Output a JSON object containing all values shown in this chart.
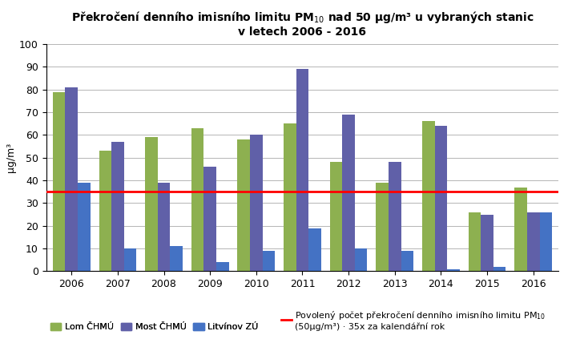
{
  "years": [
    2006,
    2007,
    2008,
    2009,
    2010,
    2011,
    2012,
    2013,
    2014,
    2015,
    2016
  ],
  "lom": [
    79,
    53,
    59,
    63,
    58,
    65,
    48,
    39,
    66,
    26,
    37
  ],
  "most": [
    81,
    57,
    39,
    46,
    60,
    89,
    69,
    48,
    64,
    25,
    26
  ],
  "litvinov": [
    39,
    10,
    11,
    4,
    9,
    19,
    10,
    9,
    1,
    2,
    26
  ],
  "limit": 35,
  "color_lom": "#8db050",
  "color_most": "#6060a8",
  "color_litvinov": "#4472c4",
  "color_limit": "#ff0000",
  "title": "Překročení denního imisního limitu PM$_{10}$ nad 50 μg/m³ u vybraných stanic\nv letech 2006 - 2016",
  "ylabel": "μg/m³",
  "ylim": [
    0,
    100
  ],
  "yticks": [
    0,
    10,
    20,
    30,
    40,
    50,
    60,
    70,
    80,
    90,
    100
  ],
  "legend_lom": "Lom ČHMÚ",
  "legend_most": "Most ČHMÚ",
  "legend_litvinov": "Litvínov ZÚ",
  "legend_limit_line1": "Povolený počet překročení denního imisního limitu PM$_{10}$",
  "legend_limit_line2": "(50μg/m³) · 35x za kalendářní rok"
}
